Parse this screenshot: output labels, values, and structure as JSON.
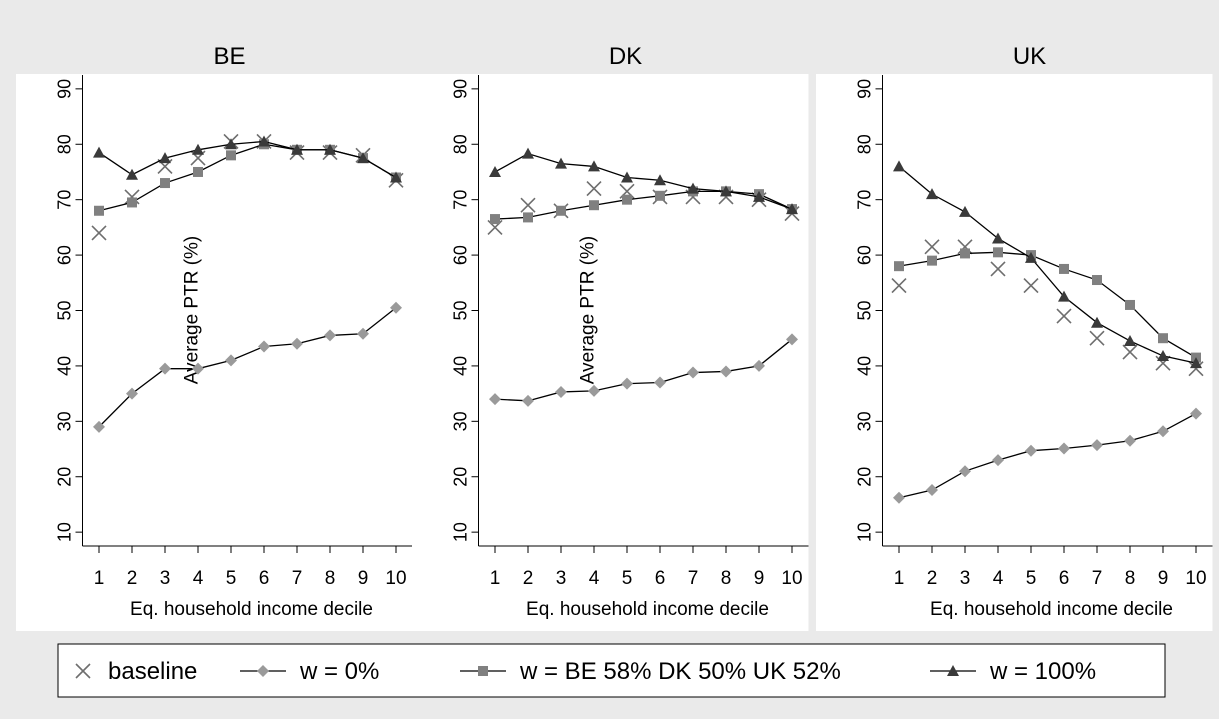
{
  "chart_data": [
    {
      "type": "line",
      "title": "BE",
      "y_label": "Average PTR (%)",
      "x_label": "Eq. household income decile",
      "x": [
        1,
        2,
        3,
        4,
        5,
        6,
        7,
        8,
        9,
        10
      ],
      "xlim": [
        0.5,
        10.5
      ],
      "xticks": [
        1,
        2,
        3,
        4,
        5,
        6,
        7,
        8,
        9,
        10
      ],
      "ylim": [
        7.5,
        92.5
      ],
      "yticks": [
        10,
        20,
        30,
        40,
        50,
        60,
        70,
        80,
        90
      ],
      "series": [
        {
          "name": "baseline",
          "color": "#6e6e6e",
          "marker": "x",
          "values": [
            64,
            70.5,
            76,
            77.5,
            80.5,
            80.5,
            78.5,
            78.5,
            78,
            73.5
          ]
        },
        {
          "name": "w = 0%",
          "color": "#9a9a9a",
          "marker": "diamond",
          "values": [
            29,
            35,
            39.5,
            39.5,
            41,
            43.5,
            44,
            45.5,
            45.8,
            50.5
          ]
        },
        {
          "name": "w = BE 58% DK 50% UK 52%",
          "color": "#808080",
          "marker": "square",
          "values": [
            68,
            69.5,
            73,
            75,
            78,
            80,
            79,
            79,
            77.5,
            74
          ]
        },
        {
          "name": "w = 100%",
          "color": "#3a3a3a",
          "marker": "triangle",
          "values": [
            78.5,
            74.5,
            77.5,
            79,
            80,
            80.5,
            79,
            79,
            77.5,
            74
          ]
        }
      ]
    },
    {
      "type": "line",
      "title": "DK",
      "y_label": "Average PTR (%)",
      "x_label": "Eq. household income decile",
      "x": [
        1,
        2,
        3,
        4,
        5,
        6,
        7,
        8,
        9,
        10
      ],
      "xlim": [
        0.5,
        10.5
      ],
      "xticks": [
        1,
        2,
        3,
        4,
        5,
        6,
        7,
        8,
        9,
        10
      ],
      "ylim": [
        7.5,
        92.5
      ],
      "yticks": [
        10,
        20,
        30,
        40,
        50,
        60,
        70,
        80,
        90
      ],
      "series": [
        {
          "name": "baseline",
          "color": "#6e6e6e",
          "marker": "x",
          "values": [
            65,
            69,
            68,
            72,
            71.5,
            70.5,
            70.5,
            70.5,
            70,
            67.5
          ]
        },
        {
          "name": "w = 0%",
          "color": "#9a9a9a",
          "marker": "diamond",
          "values": [
            34,
            33.7,
            35.3,
            35.5,
            36.8,
            37,
            38.8,
            39,
            40,
            44.8
          ]
        },
        {
          "name": "w = BE 58% DK 50% UK 52%",
          "color": "#808080",
          "marker": "square",
          "values": [
            66.5,
            66.8,
            68,
            69,
            70,
            70.7,
            71.5,
            71.5,
            71,
            68.3
          ]
        },
        {
          "name": "w = 100%",
          "color": "#3a3a3a",
          "marker": "triangle",
          "values": [
            75,
            78.3,
            76.5,
            76,
            74,
            73.5,
            72,
            71.5,
            70.5,
            68.3
          ]
        }
      ]
    },
    {
      "type": "line",
      "title": "UK",
      "x_label": "Eq. household income decile",
      "x": [
        1,
        2,
        3,
        4,
        5,
        6,
        7,
        8,
        9,
        10
      ],
      "xlim": [
        0.5,
        10.5
      ],
      "xticks": [
        1,
        2,
        3,
        4,
        5,
        6,
        7,
        8,
        9,
        10
      ],
      "ylim": [
        7.5,
        92.5
      ],
      "yticks": [
        10,
        20,
        30,
        40,
        50,
        60,
        70,
        80,
        90
      ],
      "series": [
        {
          "name": "baseline",
          "color": "#6e6e6e",
          "marker": "x",
          "values": [
            54.5,
            61.5,
            61.5,
            57.5,
            54.5,
            49,
            45,
            42.5,
            40.5,
            39.5
          ]
        },
        {
          "name": "w = 0%",
          "color": "#9a9a9a",
          "marker": "diamond",
          "values": [
            16.2,
            17.6,
            21,
            23,
            24.7,
            25.1,
            25.7,
            26.5,
            28.2,
            31.4
          ]
        },
        {
          "name": "w = BE 58% DK 50% UK 52%",
          "color": "#808080",
          "marker": "square",
          "values": [
            58,
            59,
            60.3,
            60.5,
            60,
            57.5,
            55.5,
            51,
            45,
            41.5
          ]
        },
        {
          "name": "w = 100%",
          "color": "#3a3a3a",
          "marker": "triangle",
          "values": [
            76,
            71,
            67.8,
            63,
            59.5,
            52.5,
            47.8,
            44.5,
            41.8,
            40.5
          ]
        }
      ]
    }
  ]
}
